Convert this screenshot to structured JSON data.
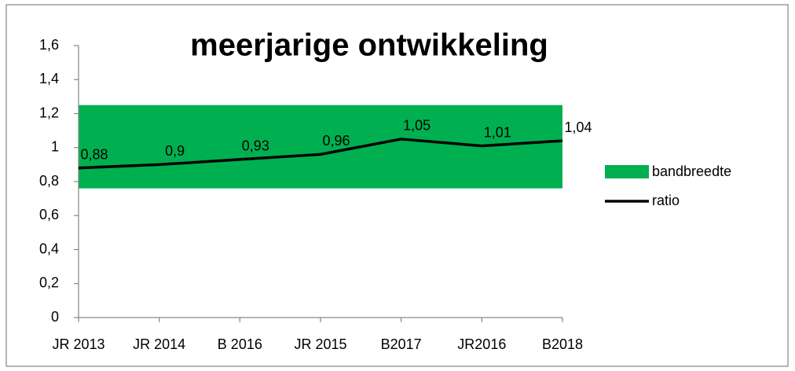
{
  "chart_data": {
    "type": "line",
    "title": "meerjarige ontwikkeling",
    "categories": [
      "JR 2013",
      "JR 2014",
      "B 2016",
      "JR 2015",
      "B2017",
      "JR2016",
      "B2018"
    ],
    "band": {
      "name": "bandbreedte",
      "color": "#00b050",
      "range": [
        0.76,
        1.25
      ]
    },
    "series": [
      {
        "name": "ratio",
        "color": "#000000",
        "values": [
          0.88,
          0.9,
          0.93,
          0.96,
          1.05,
          1.01,
          1.04
        ],
        "value_labels": [
          "0,88",
          "0,9",
          "0,93",
          "0,96",
          "1,05",
          "1,01",
          "1,04"
        ]
      }
    ],
    "ylim": [
      0,
      1.6
    ],
    "yticks": [
      0,
      {
        "value": 0.2,
        "label": "0,2"
      },
      {
        "value": 0.4,
        "label": "0,4"
      },
      {
        "value": 0.6,
        "label": "0,6"
      },
      {
        "value": 0.8,
        "label": "0,8"
      },
      1,
      {
        "value": 1.2,
        "label": "1,2"
      },
      {
        "value": 1.4,
        "label": "1,4"
      },
      {
        "value": 1.6,
        "label": "1,6"
      }
    ],
    "legend": "right"
  }
}
